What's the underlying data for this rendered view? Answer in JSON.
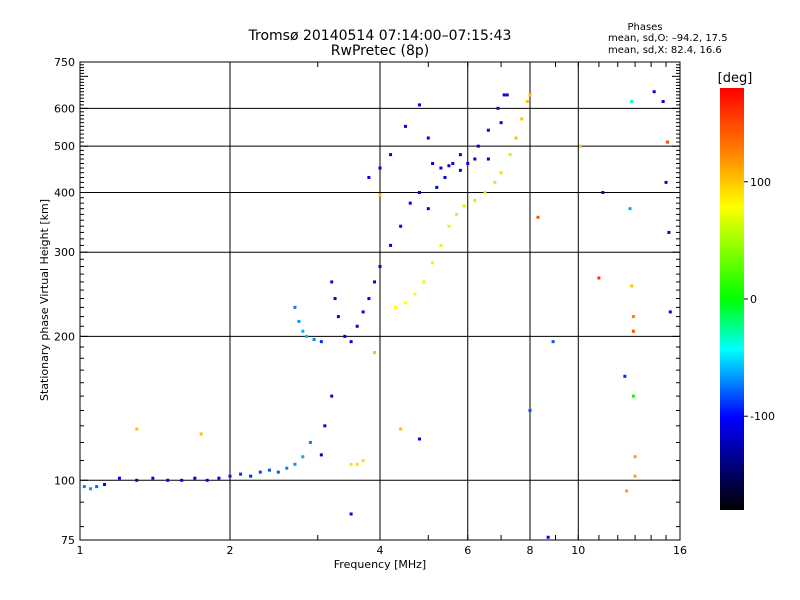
{
  "chart_data": {
    "type": "scatter",
    "title": "Tromsø 20140514 07:14:00–07:15:43",
    "subtitle": "RwPretec (8p)",
    "xlabel": "Frequency [MHz]",
    "ylabel": "Stationary phase Virtual Height [km]",
    "x_scale": "log",
    "y_scale": "log",
    "xlim": [
      1,
      16
    ],
    "ylim": [
      75,
      750
    ],
    "x_ticks": [
      1,
      2,
      4,
      6,
      8,
      10,
      16
    ],
    "y_ticks": [
      75,
      100,
      200,
      300,
      400,
      500,
      600,
      750
    ],
    "grid": true,
    "phase_box": {
      "title": "Phases",
      "line_o": "mean, sd,O: –94.2, 17.5",
      "line_x": "mean, sd,X:  82.4, 16.6"
    },
    "colorbar": {
      "label": "[deg]",
      "range": [
        -180,
        180
      ],
      "ticks": [
        100,
        0,
        -100
      ],
      "colors": [
        "#ff0000",
        "#ff8000",
        "#ffff00",
        "#00ff00",
        "#00ffff",
        "#0000ff",
        "#000000"
      ]
    },
    "series": [
      {
        "points": [
          [
            1.02,
            97,
            -60
          ],
          [
            1.05,
            96,
            -55
          ],
          [
            1.08,
            97,
            -65
          ],
          [
            1.12,
            98,
            -90
          ],
          [
            1.2,
            101,
            -95
          ],
          [
            1.3,
            100,
            -100
          ],
          [
            1.4,
            101,
            -100
          ],
          [
            1.5,
            100,
            -95
          ],
          [
            1.6,
            100,
            -95
          ],
          [
            1.7,
            101,
            -100
          ],
          [
            1.8,
            100,
            -90
          ],
          [
            1.9,
            101,
            -90
          ],
          [
            2.0,
            102,
            -85
          ],
          [
            2.1,
            103,
            -80
          ],
          [
            2.2,
            102,
            -80
          ],
          [
            2.3,
            104,
            -75
          ],
          [
            2.4,
            105,
            -70
          ],
          [
            2.5,
            104,
            -70
          ],
          [
            2.6,
            106,
            -60
          ],
          [
            2.7,
            108,
            -55
          ],
          [
            2.8,
            112,
            -50
          ],
          [
            2.9,
            120,
            -60
          ],
          [
            3.05,
            113,
            -120
          ],
          [
            3.1,
            130,
            -100
          ],
          [
            3.2,
            150,
            -100
          ],
          [
            2.7,
            230,
            -60
          ],
          [
            2.75,
            215,
            -55
          ],
          [
            2.8,
            205,
            -50
          ],
          [
            2.85,
            200,
            -45
          ],
          [
            2.95,
            197,
            -60
          ],
          [
            3.05,
            195,
            -80
          ],
          [
            3.2,
            260,
            -100
          ],
          [
            3.25,
            240,
            -100
          ],
          [
            3.3,
            220,
            -100
          ],
          [
            3.4,
            200,
            -100
          ],
          [
            3.5,
            195,
            -100
          ],
          [
            3.6,
            210,
            -100
          ],
          [
            3.7,
            225,
            -100
          ],
          [
            3.8,
            240,
            -100
          ],
          [
            3.9,
            260,
            -100
          ],
          [
            4.0,
            280,
            -100
          ],
          [
            4.2,
            310,
            -100
          ],
          [
            4.4,
            340,
            -100
          ],
          [
            4.6,
            380,
            -100
          ],
          [
            4.8,
            400,
            -100
          ],
          [
            5.0,
            370,
            -100
          ],
          [
            5.2,
            410,
            -100
          ],
          [
            5.4,
            430,
            -100
          ],
          [
            5.6,
            460,
            -100
          ],
          [
            5.8,
            480,
            -100
          ],
          [
            6.0,
            460,
            -100
          ],
          [
            6.3,
            500,
            -100
          ],
          [
            6.6,
            540,
            -100
          ],
          [
            6.9,
            600,
            -100
          ],
          [
            7.1,
            640,
            -100
          ],
          [
            3.8,
            430,
            -100
          ],
          [
            4.0,
            450,
            -100
          ],
          [
            4.2,
            480,
            -100
          ],
          [
            4.5,
            550,
            -100
          ],
          [
            4.8,
            610,
            -100
          ],
          [
            5.0,
            520,
            -100
          ],
          [
            5.1,
            460,
            -100
          ],
          [
            5.3,
            450,
            -100
          ],
          [
            5.5,
            455,
            -100
          ],
          [
            5.8,
            445,
            -100
          ],
          [
            6.2,
            470,
            -110
          ],
          [
            6.6,
            470,
            -110
          ],
          [
            7.0,
            560,
            -110
          ],
          [
            7.2,
            640,
            -110
          ]
        ]
      },
      {
        "points": [
          [
            3.5,
            108,
            100
          ],
          [
            3.6,
            108,
            100
          ],
          [
            3.7,
            110,
            100
          ],
          [
            4.3,
            230,
            90
          ],
          [
            4.5,
            235,
            90
          ],
          [
            4.7,
            245,
            90
          ],
          [
            4.9,
            260,
            80
          ],
          [
            5.1,
            285,
            80
          ],
          [
            5.3,
            310,
            80
          ],
          [
            5.5,
            340,
            80
          ],
          [
            5.7,
            360,
            70
          ],
          [
            5.9,
            375,
            70
          ],
          [
            6.2,
            385,
            70
          ],
          [
            6.5,
            400,
            80
          ],
          [
            6.8,
            420,
            100
          ],
          [
            7.0,
            440,
            100
          ],
          [
            7.3,
            480,
            100
          ],
          [
            7.5,
            520,
            110
          ],
          [
            7.7,
            570,
            110
          ],
          [
            7.9,
            620,
            110
          ],
          [
            8.0,
            640,
            110
          ]
        ]
      },
      {
        "points": [
          [
            1.3,
            128,
            110
          ],
          [
            1.75,
            125,
            110
          ],
          [
            8.3,
            355,
            150
          ],
          [
            10.1,
            500,
            110
          ],
          [
            12.8,
            255,
            110
          ],
          [
            12.9,
            220,
            130
          ],
          [
            12.9,
            205,
            150
          ],
          [
            13.0,
            112,
            120
          ],
          [
            13.0,
            102,
            120
          ],
          [
            12.5,
            95,
            120
          ],
          [
            14.2,
            650,
            -100
          ],
          [
            14.8,
            620,
            -100
          ],
          [
            15.1,
            510,
            150
          ],
          [
            15.0,
            420,
            -100
          ],
          [
            15.2,
            330,
            -100
          ],
          [
            15.3,
            225,
            -100
          ],
          [
            12.8,
            620,
            -20
          ],
          [
            11.2,
            400,
            -100
          ],
          [
            12.7,
            370,
            -50
          ],
          [
            11.0,
            265,
            160
          ],
          [
            12.4,
            165,
            -80
          ],
          [
            12.9,
            150,
            10
          ],
          [
            8.0,
            140,
            -70
          ],
          [
            8.9,
            195,
            -70
          ],
          [
            8.7,
            76,
            -100
          ],
          [
            3.5,
            85,
            -100
          ],
          [
            4.8,
            122,
            -100
          ],
          [
            4.4,
            128,
            110
          ],
          [
            4.0,
            395,
            110
          ],
          [
            3.9,
            185,
            110
          ]
        ]
      }
    ]
  }
}
